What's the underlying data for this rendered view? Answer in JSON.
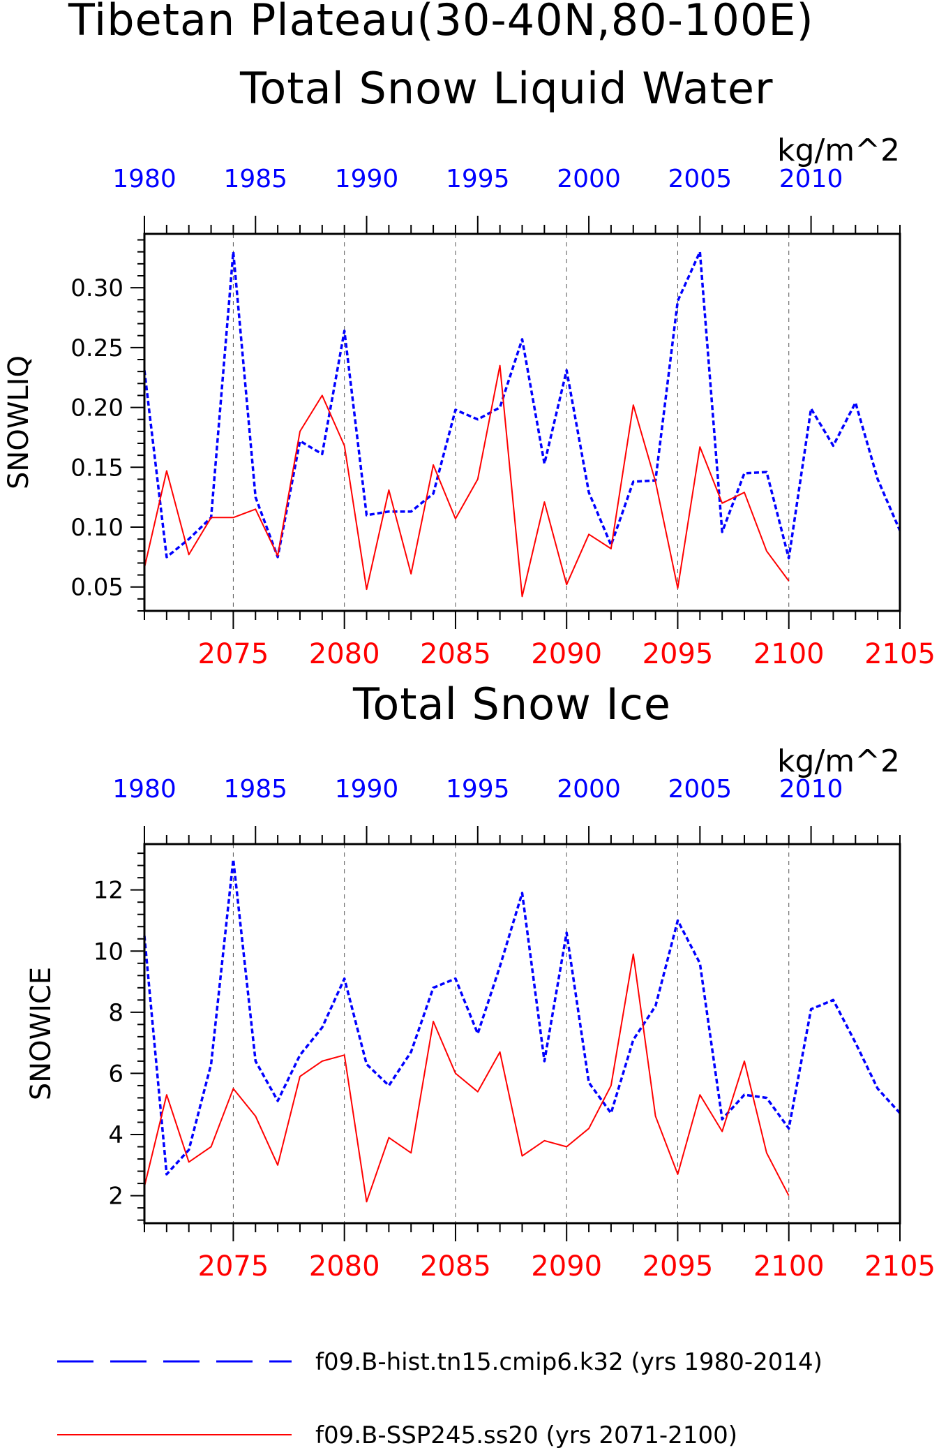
{
  "figure": {
    "title_line1": "Tibetan Plateau(30-40N,80-100E)",
    "title_line2": "Total Snow Liquid Water",
    "colors": {
      "hist": "#0000ff",
      "ssp": "#ff0000",
      "axis": "#000000"
    }
  },
  "legend": {
    "hist_label": "f09.B-hist.tn15.cmip6.k32 (yrs 1980-2014)",
    "ssp_label": "f09.B-SSP245.ss20 (yrs 2071-2100)"
  },
  "chart_data": [
    {
      "type": "line",
      "title": "Total Snow Liquid Water",
      "units": "kg/m^2",
      "ylabel": "SNOWLIQ",
      "ylim": [
        0.03,
        0.345
      ],
      "yticks": [
        "0.05",
        "0.10",
        "0.15",
        "0.20",
        "0.25",
        "0.30"
      ],
      "ytick_values": [
        0.05,
        0.1,
        0.15,
        0.2,
        0.25,
        0.3
      ],
      "x_top_ticks": [
        "1980",
        "1985",
        "1990",
        "1995",
        "2000",
        "2005",
        "2010"
      ],
      "x_bottom_ticks": [
        "2075",
        "2080",
        "2085",
        "2090",
        "2095",
        "2100",
        "2105"
      ],
      "grid": "vertical dashed at bottom-axis major ticks",
      "series": [
        {
          "name": "f09.B-hist.tn15.cmip6.k32 (yrs 1980-2014)",
          "style": "dashed",
          "x": [
            1980,
            1981,
            1982,
            1983,
            1984,
            1985,
            1986,
            1987,
            1988,
            1989,
            1990,
            1991,
            1992,
            1993,
            1994,
            1995,
            1996,
            1997,
            1998,
            1999,
            2000,
            2001,
            2002,
            2003,
            2004,
            2005,
            2006,
            2007,
            2008,
            2009,
            2010,
            2011,
            2012,
            2013,
            2014
          ],
          "values": [
            0.231,
            0.075,
            0.09,
            0.108,
            0.33,
            0.125,
            0.075,
            0.172,
            0.161,
            0.264,
            0.11,
            0.113,
            0.113,
            0.128,
            0.198,
            0.19,
            0.2,
            0.257,
            0.153,
            0.231,
            0.129,
            0.085,
            0.138,
            0.139,
            0.289,
            0.33,
            0.096,
            0.145,
            0.146,
            0.074,
            0.199,
            0.168,
            0.204,
            0.14,
            0.097
          ]
        },
        {
          "name": "f09.B-SSP245.ss20 (yrs 2071-2100)",
          "style": "solid",
          "x": [
            2071,
            2072,
            2073,
            2074,
            2075,
            2076,
            2077,
            2078,
            2079,
            2080,
            2081,
            2082,
            2083,
            2084,
            2085,
            2086,
            2087,
            2088,
            2089,
            2090,
            2091,
            2092,
            2093,
            2094,
            2095,
            2096,
            2097,
            2098,
            2099,
            2100
          ],
          "values": [
            0.066,
            0.147,
            0.077,
            0.108,
            0.108,
            0.115,
            0.076,
            0.18,
            0.21,
            0.168,
            0.048,
            0.131,
            0.061,
            0.152,
            0.107,
            0.14,
            0.235,
            0.042,
            0.121,
            0.052,
            0.094,
            0.082,
            0.202,
            0.138,
            0.049,
            0.167,
            0.12,
            0.129,
            0.08,
            0.055
          ]
        }
      ]
    },
    {
      "type": "line",
      "title": "Total Snow Ice",
      "units": "kg/m^2",
      "ylabel": "SNOWICE",
      "ylim": [
        1.1,
        13.5
      ],
      "yticks": [
        "2",
        "4",
        "6",
        "8",
        "10",
        "12"
      ],
      "ytick_values": [
        2,
        4,
        6,
        8,
        10,
        12
      ],
      "x_top_ticks": [
        "1980",
        "1985",
        "1990",
        "1995",
        "2000",
        "2005",
        "2010"
      ],
      "x_bottom_ticks": [
        "2075",
        "2080",
        "2085",
        "2090",
        "2095",
        "2100",
        "2105"
      ],
      "grid": "vertical dashed at bottom-axis major ticks",
      "series": [
        {
          "name": "f09.B-hist.tn15.cmip6.k32 (yrs 1980-2014)",
          "style": "dashed",
          "x": [
            1980,
            1981,
            1982,
            1983,
            1984,
            1985,
            1986,
            1987,
            1988,
            1989,
            1990,
            1991,
            1992,
            1993,
            1994,
            1995,
            1996,
            1997,
            1998,
            1999,
            2000,
            2001,
            2002,
            2003,
            2004,
            2005,
            2006,
            2007,
            2008,
            2009,
            2010,
            2011,
            2012,
            2013,
            2014
          ],
          "values": [
            10.5,
            2.7,
            3.5,
            6.3,
            13.0,
            6.4,
            5.1,
            6.6,
            7.5,
            9.1,
            6.3,
            5.6,
            6.7,
            8.8,
            9.1,
            7.3,
            9.5,
            11.9,
            6.4,
            10.6,
            5.7,
            4.7,
            7.1,
            8.2,
            11.0,
            9.6,
            4.5,
            5.3,
            5.2,
            4.2,
            8.1,
            8.4,
            7.0,
            5.5,
            4.7
          ]
        },
        {
          "name": "f09.B-SSP245.ss20 (yrs 2071-2100)",
          "style": "solid",
          "x": [
            2071,
            2072,
            2073,
            2074,
            2075,
            2076,
            2077,
            2078,
            2079,
            2080,
            2081,
            2082,
            2083,
            2084,
            2085,
            2086,
            2087,
            2088,
            2089,
            2090,
            2091,
            2092,
            2093,
            2094,
            2095,
            2096,
            2097,
            2098,
            2099,
            2100
          ],
          "values": [
            2.3,
            5.3,
            3.1,
            3.6,
            5.5,
            4.6,
            3.0,
            5.9,
            6.4,
            6.6,
            1.8,
            3.9,
            3.4,
            7.7,
            6.0,
            5.4,
            6.7,
            3.3,
            3.8,
            3.6,
            4.2,
            5.6,
            9.9,
            4.6,
            2.7,
            5.3,
            4.1,
            6.4,
            3.4,
            2.0
          ]
        }
      ]
    }
  ]
}
